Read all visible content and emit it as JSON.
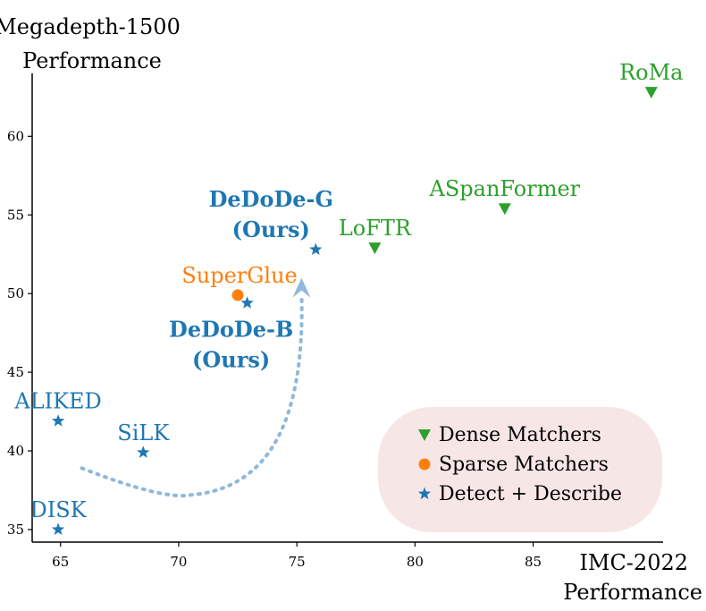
{
  "chart_data": {
    "type": "scatter",
    "ylabel_lines": [
      "Megadepth-1500",
      "Performance"
    ],
    "xlabel_lines": [
      "IMC-2022",
      "Performance"
    ],
    "xlim": [
      63.8,
      90.5
    ],
    "ylim": [
      34.2,
      64
    ],
    "xticks": [
      65,
      70,
      75,
      80,
      85
    ],
    "yticks": [
      35,
      40,
      45,
      50,
      55,
      60
    ],
    "colors": {
      "dense": "#2ca02c",
      "sparse": "#ff7f0e",
      "detect": "#1f77b4",
      "arrow": "#8fb8dc",
      "legend_bg": "#f7e6e6"
    },
    "series": [
      {
        "name": "Dense Matchers",
        "marker": "triangle-down",
        "color": "#2ca02c",
        "points": [
          {
            "x": 90.0,
            "y": 62.8,
            "label": "RoMa",
            "bold": false,
            "label_anchor": "middle",
            "label_pos": "above"
          },
          {
            "x": 83.8,
            "y": 55.4,
            "label": "ASpanFormer",
            "bold": false,
            "label_anchor": "middle",
            "label_pos": "above"
          },
          {
            "x": 78.3,
            "y": 52.9,
            "label": "LoFTR",
            "bold": false,
            "label_anchor": "middle",
            "label_pos": "above"
          }
        ]
      },
      {
        "name": "Sparse Matchers",
        "marker": "circle",
        "color": "#ff7f0e",
        "points": [
          {
            "x": 72.5,
            "y": 49.9,
            "label": "SuperGlue",
            "bold": false,
            "label_anchor": "middle",
            "label_pos": "above"
          }
        ]
      },
      {
        "name": "Detect + Describe",
        "marker": "star",
        "color": "#1f77b4",
        "points": [
          {
            "x": 75.8,
            "y": 52.8,
            "label": "DeDoDe-G\n(Ours)",
            "bold": true,
            "label_anchor": "middle",
            "label_pos": "above"
          },
          {
            "x": 72.9,
            "y": 49.4,
            "label": "DeDoDe-B\n(Ours)",
            "bold": true,
            "label_anchor": "middle",
            "label_pos": "below"
          },
          {
            "x": 64.9,
            "y": 41.9,
            "label": "ALIKED",
            "bold": false,
            "label_anchor": "middle",
            "label_pos": "above"
          },
          {
            "x": 68.5,
            "y": 39.9,
            "label": "SiLK",
            "bold": false,
            "label_anchor": "middle",
            "label_pos": "above"
          },
          {
            "x": 64.9,
            "y": 35.0,
            "label": "DISK",
            "bold": false,
            "label_anchor": "middle",
            "label_pos": "above"
          }
        ]
      }
    ],
    "arrow": {
      "style": "dotted",
      "from": [
        65.9,
        38.9
      ],
      "via": [
        70.5,
        37.2
      ],
      "to": [
        75.2,
        51.0
      ]
    },
    "legend": {
      "placement": "lower-right",
      "entries": [
        "Dense Matchers",
        "Sparse Matchers",
        "Detect + Describe"
      ]
    }
  }
}
